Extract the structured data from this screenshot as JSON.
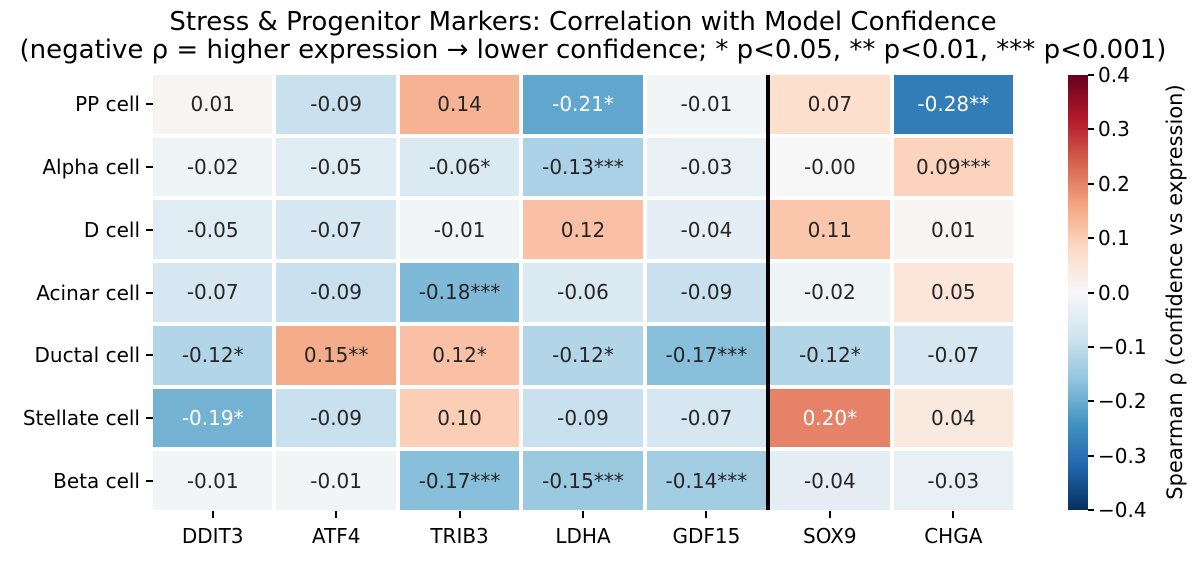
{
  "title": "Stress & Progenitor Markers: Correlation with Model Confidence",
  "subtitle": "(negative ρ = higher expression → lower confidence; * p<0.05, ** p<0.01, *** p<0.001)",
  "chart_data": {
    "type": "heatmap",
    "rows": [
      "PP cell",
      "Alpha cell",
      "D cell",
      "Acinar cell",
      "Ductal cell",
      "Stellate cell",
      "Beta cell"
    ],
    "columns": [
      "DDIT3",
      "ATF4",
      "TRIB3",
      "LDHA",
      "GDF15",
      "SOX9",
      "CHGA"
    ],
    "values": [
      [
        0.01,
        -0.09,
        0.14,
        -0.21,
        -0.01,
        0.07,
        -0.28
      ],
      [
        -0.02,
        -0.05,
        -0.06,
        -0.13,
        -0.03,
        -0.0,
        0.09
      ],
      [
        -0.05,
        -0.07,
        -0.01,
        0.12,
        -0.04,
        0.11,
        0.01
      ],
      [
        -0.07,
        -0.09,
        -0.18,
        -0.06,
        -0.09,
        -0.02,
        0.05
      ],
      [
        -0.12,
        0.15,
        0.12,
        -0.12,
        -0.17,
        -0.12,
        -0.07
      ],
      [
        -0.19,
        -0.09,
        0.1,
        -0.09,
        -0.07,
        0.2,
        0.04
      ],
      [
        -0.01,
        -0.01,
        -0.17,
        -0.15,
        -0.14,
        -0.04,
        -0.03
      ]
    ],
    "annotations": [
      [
        "0.01",
        "-0.09",
        "0.14",
        "-0.21*",
        "-0.01",
        "0.07",
        "-0.28**"
      ],
      [
        "-0.02",
        "-0.05",
        "-0.06*",
        "-0.13***",
        "-0.03",
        "-0.00",
        "0.09***"
      ],
      [
        "-0.05",
        "-0.07",
        "-0.01",
        "0.12",
        "-0.04",
        "0.11",
        "0.01"
      ],
      [
        "-0.07",
        "-0.09",
        "-0.18***",
        "-0.06",
        "-0.09",
        "-0.02",
        "0.05"
      ],
      [
        "-0.12*",
        "0.15**",
        "0.12*",
        "-0.12*",
        "-0.17***",
        "-0.12*",
        "-0.07"
      ],
      [
        "-0.19*",
        "-0.09",
        "0.10",
        "-0.09",
        "-0.07",
        "0.20*",
        "0.04"
      ],
      [
        "-0.01",
        "-0.01",
        "-0.17***",
        "-0.15***",
        "-0.14***",
        "-0.04",
        "-0.03"
      ]
    ],
    "vmin": -0.4,
    "vmax": 0.4,
    "colormap": "RdBu_r",
    "colormap_anchors": [
      "#053061",
      "#2166ac",
      "#4393c3",
      "#92c5de",
      "#d1e5f0",
      "#f7f7f7",
      "#fddbc7",
      "#f4a582",
      "#d6604d",
      "#b2182b",
      "#67001f"
    ],
    "separator_after_column_index": 5,
    "separator_color": "#000000",
    "annotation_text_dark": "#262626",
    "annotation_text_light": "#ffffff",
    "background": "#ffffff",
    "grid_gap_color": "#ffffff",
    "colorbar": {
      "label": "Spearman ρ (confidence vs expression)",
      "ticks": [
        {
          "value": 0.4,
          "label": "0.4"
        },
        {
          "value": 0.3,
          "label": "0.3"
        },
        {
          "value": 0.2,
          "label": "0.2"
        },
        {
          "value": 0.1,
          "label": "0.1"
        },
        {
          "value": 0.0,
          "label": "0.0"
        },
        {
          "value": -0.1,
          "label": "−0.1"
        },
        {
          "value": -0.2,
          "label": "−0.2"
        },
        {
          "value": -0.3,
          "label": "−0.3"
        },
        {
          "value": -0.4,
          "label": "−0.4"
        }
      ]
    }
  }
}
